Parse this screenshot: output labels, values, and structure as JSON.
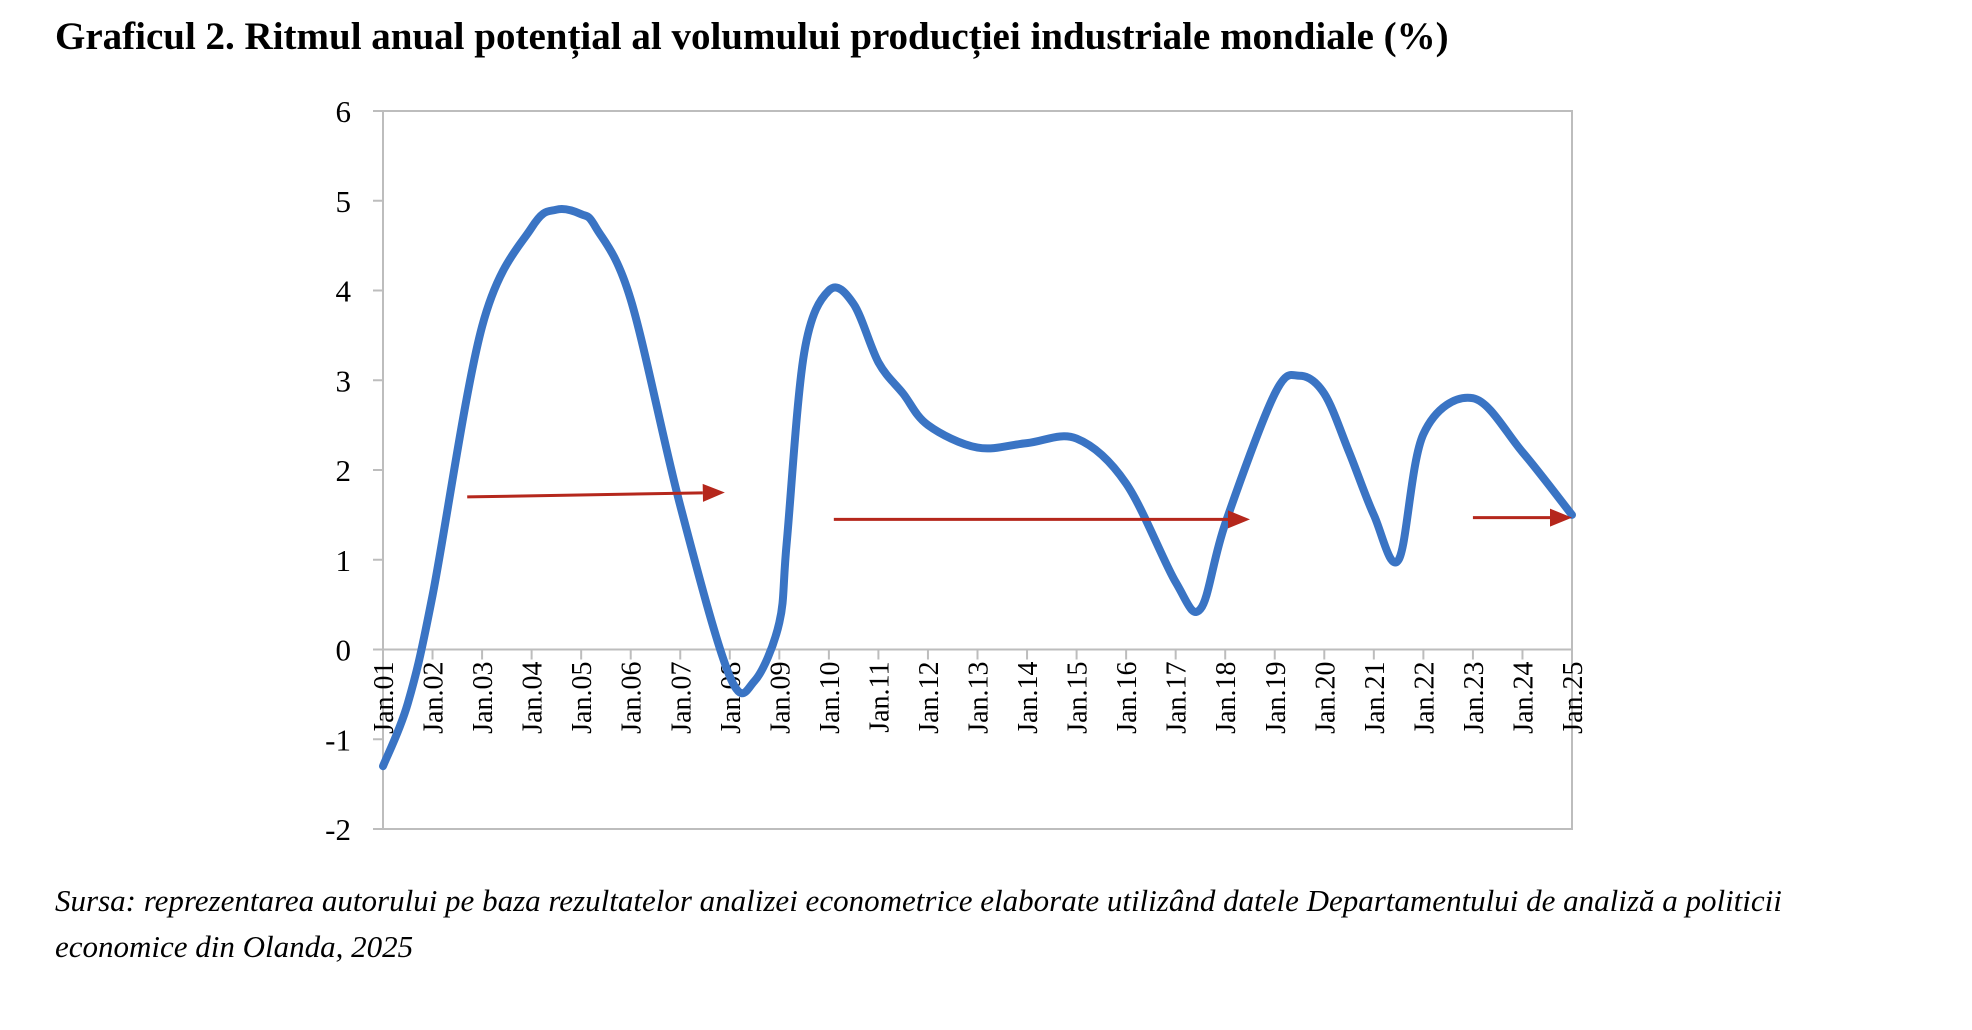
{
  "title": "Graficul 2. Ritmul anual potențial al volumului producției industriale mondiale (%)",
  "source": "Sursa: reprezentarea autorului pe baza rezultatelor analizei econometrice elaborate utilizând datele Departamentului de analiză a politicii economice din Olanda, 2025",
  "chart_data": {
    "type": "line",
    "title": "Graficul 2. Ritmul anual potențial al volumului producției industriale mondiale (%)",
    "xlabel": "",
    "ylabel": "",
    "ylim": [
      -2,
      6
    ],
    "yticks": [
      6,
      5,
      4,
      3,
      2,
      1,
      0,
      -1,
      -2
    ],
    "categories": [
      "Jan.01",
      "Jan.02",
      "Jan.03",
      "Jan.04",
      "Jan.05",
      "Jan.06",
      "Jan.07",
      "Jan.08",
      "Jan.09",
      "Jan.10",
      "Jan.11",
      "Jan.12",
      "Jan.13",
      "Jan.14",
      "Jan.15",
      "Jan.16",
      "Jan.17",
      "Jan.18",
      "Jan.19",
      "Jan.20",
      "Jan.21",
      "Jan.22",
      "Jan.23",
      "Jan.24",
      "Jan.25"
    ],
    "grid": false,
    "legend": "none",
    "series": [
      {
        "color": "#3a74c4",
        "x": [
          0,
          0.5,
          1,
          2,
          3,
          3.5,
          4,
          4.3,
          5,
          6,
          7,
          7.5,
          8,
          8.15,
          8.5,
          9,
          9.5,
          10,
          10.5,
          11,
          12,
          13,
          14,
          15,
          16,
          16.5,
          17,
          18,
          18.5,
          19,
          19.5,
          20,
          20.5,
          21,
          22,
          23,
          24
        ],
        "y": [
          -1.3,
          -0.6,
          0.6,
          3.6,
          4.7,
          4.9,
          4.85,
          4.7,
          3.9,
          1.6,
          -0.3,
          -0.35,
          0.3,
          1.2,
          3.3,
          4.0,
          3.85,
          3.2,
          2.85,
          2.5,
          2.25,
          2.3,
          2.35,
          1.85,
          0.75,
          0.45,
          1.4,
          2.85,
          3.05,
          2.85,
          2.2,
          1.5,
          1.0,
          2.4,
          2.8,
          2.2,
          1.5
        ]
      }
    ],
    "arrows": [
      {
        "color": "#b5271c",
        "x1": 1.7,
        "y1": 1.7,
        "x2": 6.9,
        "y2": 1.75
      },
      {
        "color": "#b5271c",
        "x1": 9.1,
        "y1": 1.45,
        "x2": 17.5,
        "y2": 1.45
      },
      {
        "color": "#b5271c",
        "x1": 22.0,
        "y1": 1.47,
        "x2": 24.0,
        "y2": 1.47
      }
    ]
  }
}
